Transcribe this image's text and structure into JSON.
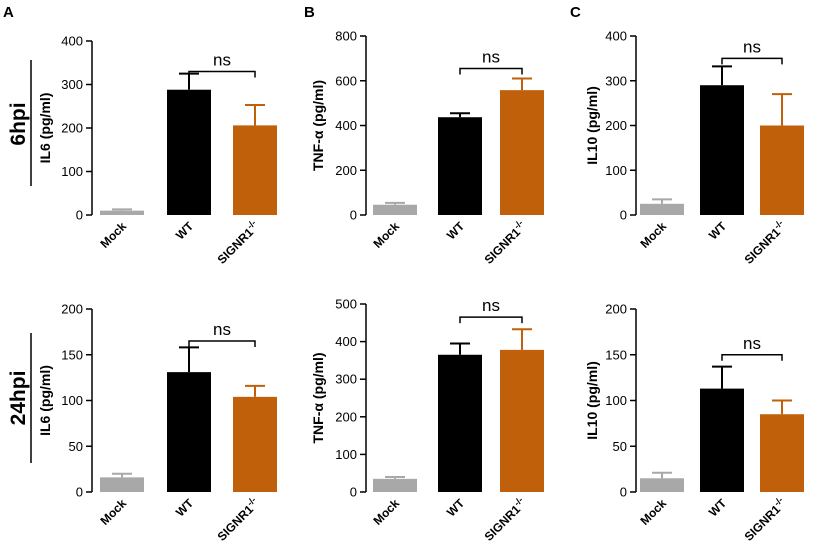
{
  "colors": {
    "mock": "#a8a8a8",
    "wt": "#000000",
    "signr1": "#c0600a"
  },
  "panel_letters": [
    "A",
    "B",
    "C"
  ],
  "row_labels": [
    "6hpi",
    "24hpi"
  ],
  "chart_data": [
    {
      "type": "bar",
      "panel": "A",
      "row": "6hpi",
      "ylabel": "IL6 (pg/ml)",
      "ylim": [
        0,
        400
      ],
      "yticks": [
        0,
        100,
        200,
        300,
        400
      ],
      "categories": [
        "Mock",
        "WT",
        "SIGNR1-/-"
      ],
      "values": [
        10,
        288,
        206
      ],
      "errors": [
        3,
        37,
        47
      ],
      "significance": {
        "from": 1,
        "to": 2,
        "label": "ns",
        "y": 330
      }
    },
    {
      "type": "bar",
      "panel": "B",
      "row": "6hpi",
      "ylabel": "TNF-α (pg/ml)",
      "ylim": [
        0,
        800
      ],
      "yticks": [
        0,
        200,
        400,
        600,
        800
      ],
      "categories": [
        "Mock",
        "WT",
        "SIGNR1-/-"
      ],
      "values": [
        46,
        437,
        558
      ],
      "errors": [
        8,
        18,
        52
      ],
      "significance": {
        "from": 1,
        "to": 2,
        "label": "ns",
        "y": 655
      }
    },
    {
      "type": "bar",
      "panel": "C",
      "row": "6hpi",
      "ylabel": "IL10 (pg/ml)",
      "ylim": [
        0,
        400
      ],
      "yticks": [
        0,
        100,
        200,
        300,
        400
      ],
      "categories": [
        "Mock",
        "WT",
        "SIGNR1-/-"
      ],
      "values": [
        25,
        290,
        200
      ],
      "errors": [
        10,
        42,
        70
      ],
      "significance": {
        "from": 1,
        "to": 2,
        "label": "ns",
        "y": 350
      }
    },
    {
      "type": "bar",
      "panel": "A",
      "row": "24hpi",
      "ylabel": "IL6 (pg/ml)",
      "ylim": [
        0,
        200
      ],
      "yticks": [
        0,
        50,
        100,
        150,
        200
      ],
      "categories": [
        "Mock",
        "WT",
        "SIGNR1-/-"
      ],
      "values": [
        16,
        131,
        104
      ],
      "errors": [
        4,
        27,
        12
      ],
      "significance": {
        "from": 1,
        "to": 2,
        "label": "ns",
        "y": 165
      }
    },
    {
      "type": "bar",
      "panel": "B",
      "row": "24hpi",
      "ylabel": "TNF-α (pg/ml)",
      "ylim": [
        0,
        500
      ],
      "yticks": [
        0,
        100,
        200,
        300,
        400,
        500
      ],
      "categories": [
        "Mock",
        "WT",
        "SIGNR1-/-"
      ],
      "values": [
        35,
        365,
        378
      ],
      "errors": [
        5,
        30,
        55
      ],
      "significance": {
        "from": 1,
        "to": 2,
        "label": "ns",
        "y": 465
      }
    },
    {
      "type": "bar",
      "panel": "C",
      "row": "24hpi",
      "ylabel": "IL10 (pg/ml)",
      "ylim": [
        0,
        200
      ],
      "yticks": [
        0,
        50,
        100,
        150,
        200
      ],
      "categories": [
        "Mock",
        "WT",
        "SIGNR1-/-"
      ],
      "values": [
        15,
        113,
        85
      ],
      "errors": [
        6,
        24,
        15
      ],
      "significance": {
        "from": 1,
        "to": 2,
        "label": "ns",
        "y": 150
      }
    }
  ]
}
